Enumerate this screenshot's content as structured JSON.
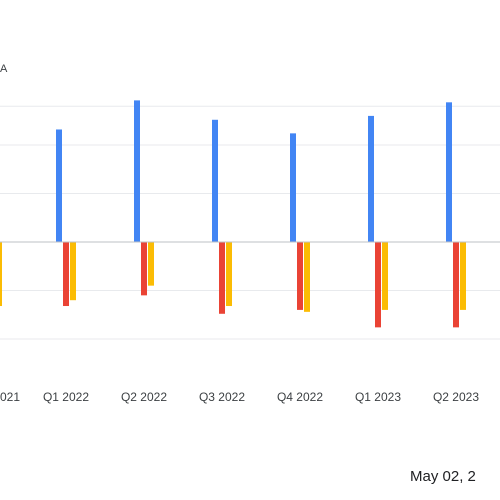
{
  "date_stamp": "May 02, 2",
  "chart_data": {
    "type": "bar",
    "y_unit_fragment": "A",
    "categories": [
      "021",
      "Q1 2022",
      "Q2 2022",
      "Q3 2022",
      "Q4 2022",
      "Q1 2023",
      "Q2 2023"
    ],
    "series": [
      {
        "color": "#4285f4",
        "values": [
          null,
          1.16,
          1.46,
          1.26,
          1.12,
          1.3,
          1.44
        ]
      },
      {
        "color": "#ea4335",
        "values": [
          null,
          -0.66,
          -0.55,
          -0.74,
          -0.7,
          -0.88,
          -0.88
        ]
      },
      {
        "color": "#fbbc04",
        "values": [
          -0.66,
          -0.6,
          -0.45,
          -0.66,
          -0.72,
          -0.7,
          -0.7
        ]
      }
    ],
    "ylim": [
      -1.0,
      1.4
    ],
    "gridlines": [
      1.4,
      1.0,
      0.5,
      0.0,
      -0.5,
      -1.0
    ],
    "grid": true,
    "legend": "none"
  }
}
